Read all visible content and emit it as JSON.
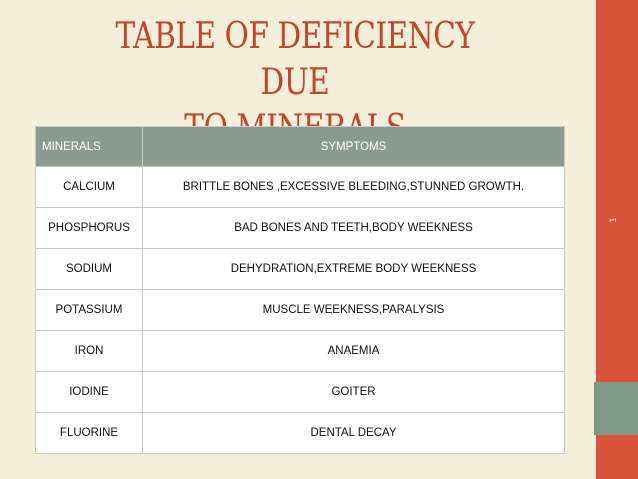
{
  "slide": {
    "title_line1": "TABLE OF DEFICIENCY DUE",
    "title_line2": "TO MINERALS",
    "slide_number": "1",
    "colors": {
      "background": "#f3efd8",
      "title": "#c0462c",
      "side_bar": "#d9533b",
      "side_accent": "#7d9b86",
      "header_row": "#8c9b8f"
    }
  },
  "table": {
    "headers": [
      "MINERALS",
      "SYMPTOMS"
    ],
    "rows": [
      {
        "mineral": "CALCIUM",
        "symptom": "BRITTLE BONES ,EXCESSIVE BLEEDING,STUNNED GROWTH."
      },
      {
        "mineral": "PHOSPHORUS",
        "symptom": "BAD BONES AND TEETH,BODY WEEKNESS"
      },
      {
        "mineral": "SODIUM",
        "symptom": "DEHYDRATION,EXTREME BODY WEEKNESS"
      },
      {
        "mineral": "POTASSIUM",
        "symptom": "MUSCLE WEEKNESS,PARALYSIS"
      },
      {
        "mineral": "IRON",
        "symptom": "ANAEMIA"
      },
      {
        "mineral": "IODINE",
        "symptom": "GOITER"
      },
      {
        "mineral": "FLUORINE",
        "symptom": "DENTAL DECAY"
      }
    ]
  }
}
